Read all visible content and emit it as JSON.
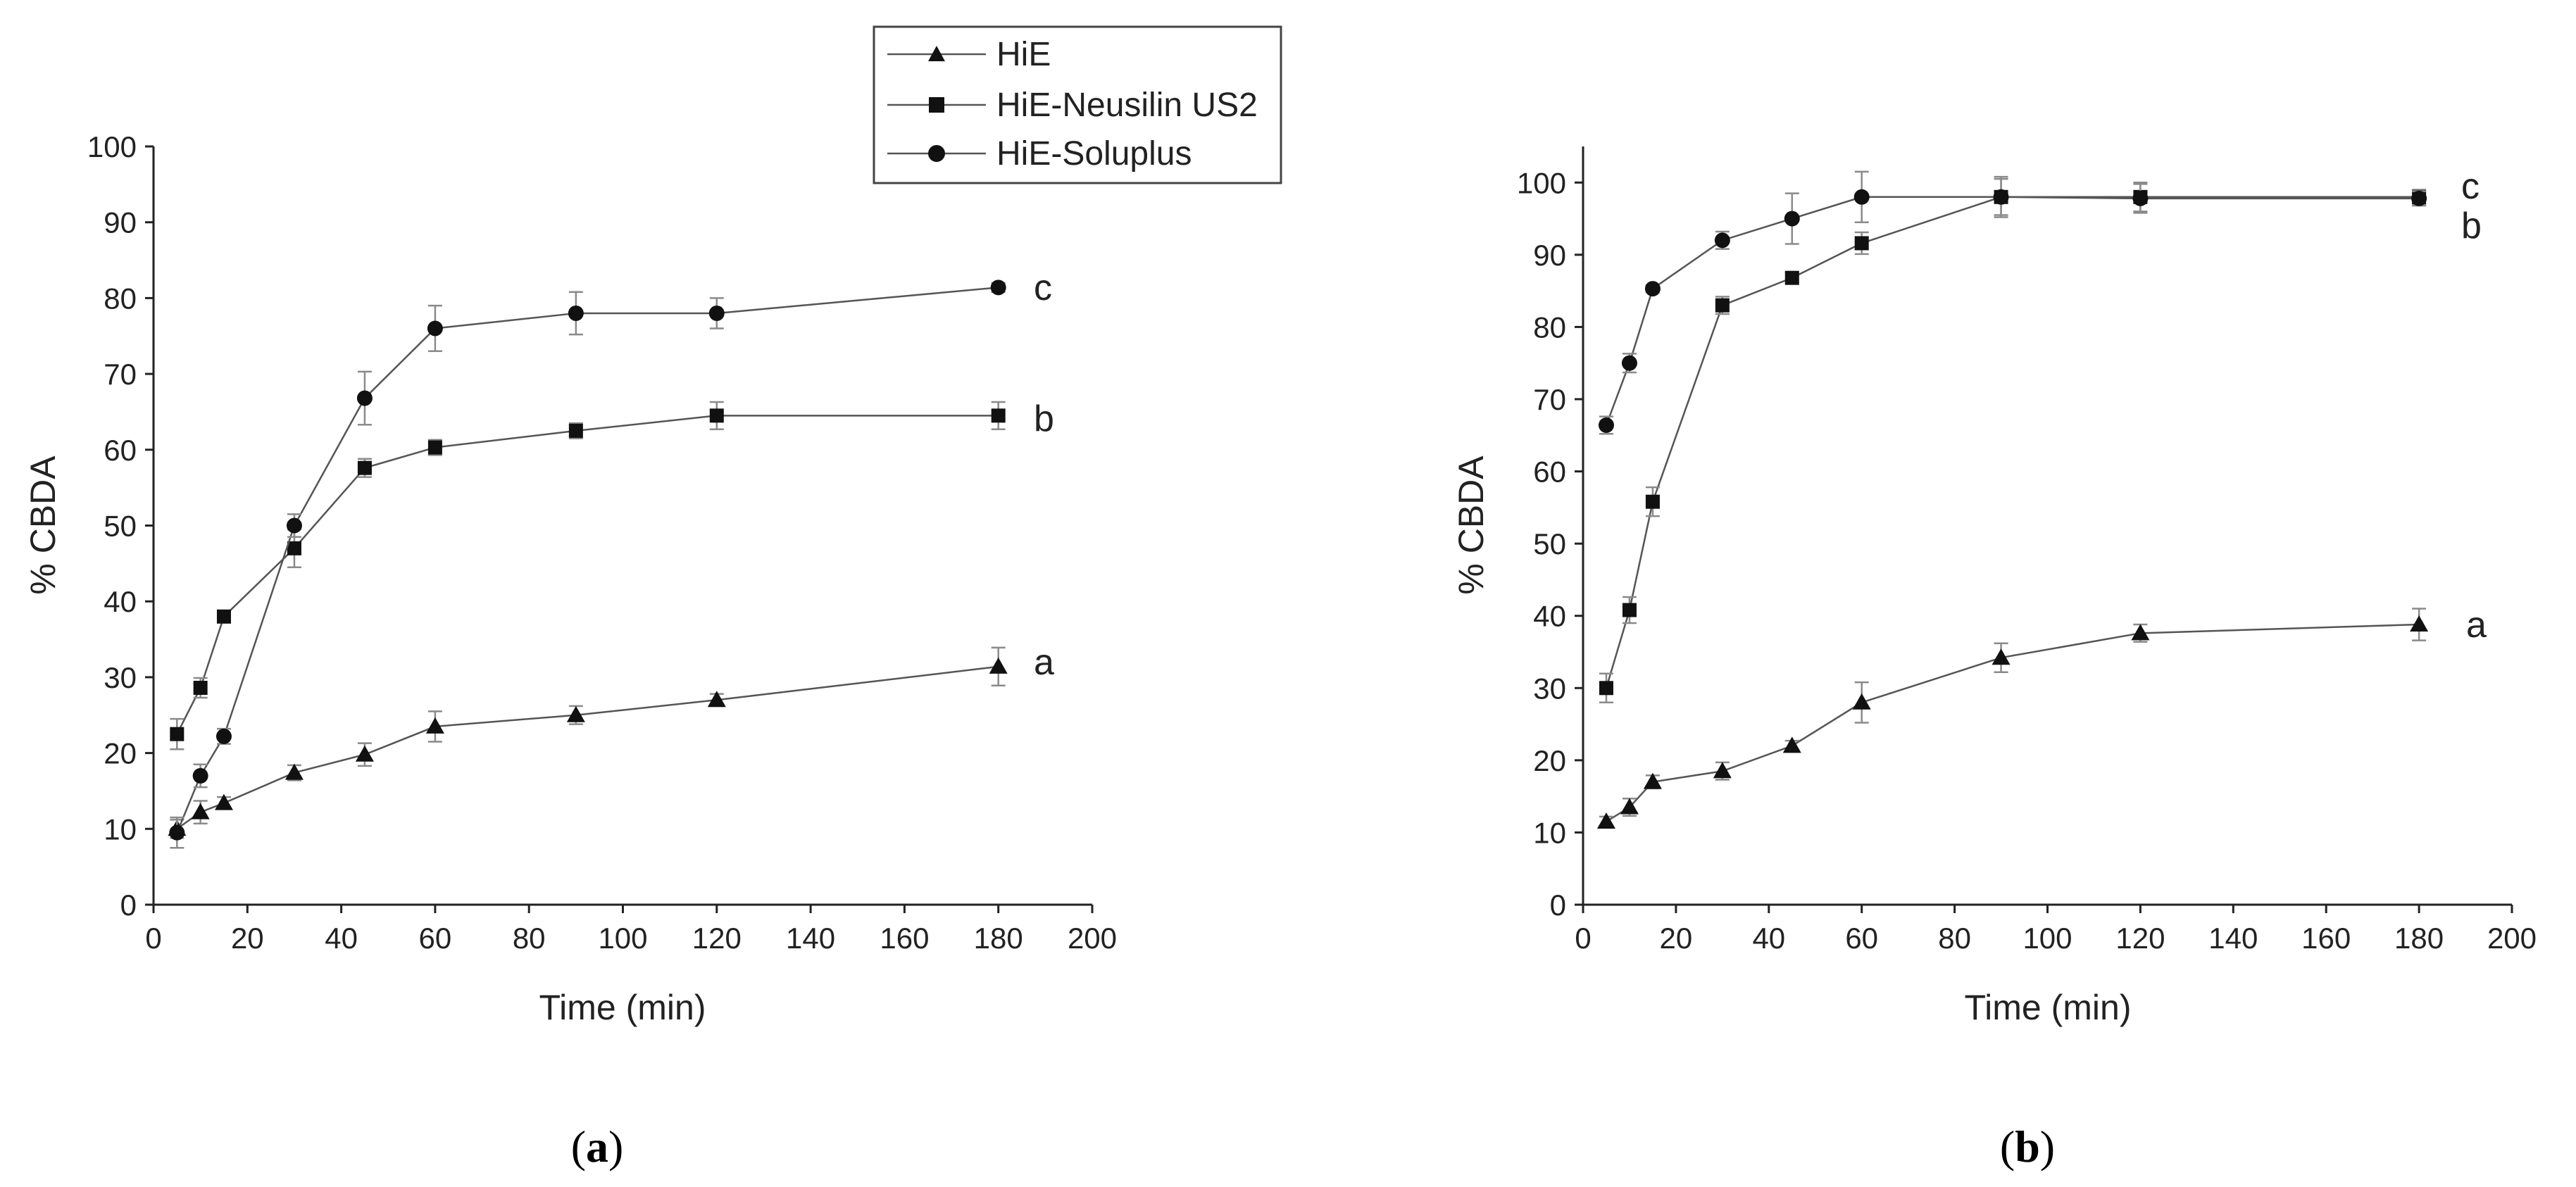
{
  "legend": {
    "entries": [
      {
        "label": "HiE",
        "marker": "triangle"
      },
      {
        "label": "HiE-Neusilin US2",
        "marker": "square"
      },
      {
        "label": "HiE-Soluplus",
        "marker": "circle"
      }
    ]
  },
  "colors": {
    "ink": "#222222",
    "line": "#555555",
    "error": "#8a8a8a"
  },
  "chart_data": [
    {
      "type": "line",
      "panel": "(a)",
      "caption": {
        "open": "(",
        "letter": "a",
        "close": ")"
      },
      "xlabel": "Time (min)",
      "ylabel": "% CBDA",
      "xlim": [
        0,
        200
      ],
      "ylim": [
        0,
        100
      ],
      "xticks": [
        0,
        20,
        40,
        60,
        80,
        100,
        120,
        140,
        160,
        180,
        200
      ],
      "yticks": [
        0,
        10,
        20,
        30,
        40,
        50,
        60,
        70,
        80,
        90,
        100
      ],
      "grid": false,
      "legend_position": "top-center",
      "series": [
        {
          "name": "HiE",
          "marker": "triangle",
          "end_label": "a",
          "x": [
            5,
            10,
            15,
            30,
            45,
            60,
            90,
            120,
            180
          ],
          "y": [
            10,
            12.2,
            13.4,
            17.4,
            19.8,
            23.5,
            25,
            27,
            31.4
          ],
          "err": [
            1.2,
            1.5,
            0.8,
            1.0,
            1.5,
            2.0,
            1.2,
            0.8,
            2.5
          ]
        },
        {
          "name": "HiE-Neusilin US2",
          "marker": "square",
          "end_label": "b",
          "x": [
            5,
            10,
            15,
            30,
            45,
            60,
            90,
            120,
            180
          ],
          "y": [
            22.5,
            28.6,
            38,
            47,
            57.6,
            60.3,
            62.5,
            64.5,
            64.5
          ],
          "err": [
            2.0,
            1.3,
            0.8,
            2.5,
            1.2,
            1.0,
            1.0,
            1.8,
            1.8
          ]
        },
        {
          "name": "HiE-Soluplus",
          "marker": "circle",
          "end_label": "c",
          "x": [
            5,
            10,
            15,
            30,
            45,
            60,
            90,
            120,
            180
          ],
          "y": [
            9.5,
            17,
            22.2,
            50,
            66.8,
            76,
            78,
            78,
            81.4
          ],
          "err": [
            2.0,
            1.5,
            1.0,
            1.5,
            3.5,
            3.0,
            2.8,
            2.0,
            0.6
          ]
        }
      ]
    },
    {
      "type": "line",
      "panel": "(b)",
      "caption": {
        "open": "(",
        "letter": "b",
        "close": ")"
      },
      "xlabel": "Time (min)",
      "ylabel": "% CBDA",
      "xlim": [
        0,
        200
      ],
      "ylim": [
        0,
        105
      ],
      "xticks": [
        0,
        20,
        40,
        60,
        80,
        100,
        120,
        140,
        160,
        180,
        200
      ],
      "yticks": [
        0,
        10,
        20,
        30,
        40,
        50,
        60,
        70,
        80,
        90,
        100
      ],
      "grid": false,
      "series": [
        {
          "name": "HiE",
          "marker": "triangle",
          "end_label": "a",
          "x": [
            5,
            10,
            15,
            30,
            45,
            60,
            90,
            120,
            180
          ],
          "y": [
            11.5,
            13.5,
            17,
            18.5,
            22,
            28,
            34.2,
            37.6,
            38.8
          ],
          "err": [
            0.7,
            1.2,
            0.9,
            1.2,
            0.7,
            2.8,
            2.0,
            1.2,
            2.2
          ]
        },
        {
          "name": "HiE-Neusilin US2",
          "marker": "square",
          "end_label": "b",
          "x": [
            5,
            10,
            15,
            30,
            45,
            60,
            90,
            120,
            180
          ],
          "y": [
            30,
            40.8,
            55.8,
            83,
            86.8,
            91.6,
            98,
            98,
            98
          ],
          "err": [
            2.0,
            1.8,
            2.0,
            1.2,
            0.8,
            1.5,
            2.5,
            2.0,
            1.0
          ]
        },
        {
          "name": "HiE-Soluplus",
          "marker": "circle",
          "end_label": "c",
          "x": [
            5,
            10,
            15,
            30,
            45,
            60,
            90,
            120,
            180
          ],
          "y": [
            66.4,
            75,
            85.3,
            92,
            95,
            98,
            98,
            97.8,
            97.8
          ],
          "err": [
            1.2,
            1.3,
            0.5,
            1.2,
            3.5,
            3.5,
            2.8,
            2.0,
            1.0
          ]
        }
      ]
    }
  ]
}
